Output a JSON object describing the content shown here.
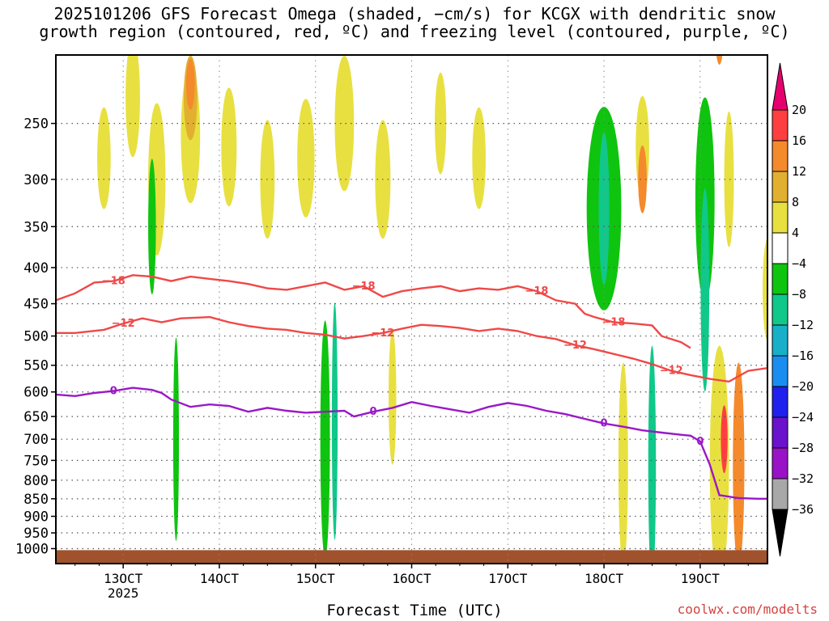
{
  "chart_data": {
    "type": "heatmap",
    "title_line1": "2025101206 GFS Forecast Omega (shaded, −cm/s) for KCGX with dendritic snow",
    "title_line2": "growth region (contoured, red, ºC) and freezing level (contoured, purple, ºC)",
    "xlabel": "Forecast Time (UTC)",
    "credit": "coolwx.com/modelts",
    "x_range_hours": [
      -7,
      67
    ],
    "x_ticks": [
      {
        "label": "13OCT",
        "hour": 0,
        "sub": "2025"
      },
      {
        "label": "14OCT",
        "hour": 10
      },
      {
        "label": "15OCT",
        "hour": 20
      },
      {
        "label": "16OCT",
        "hour": 30
      },
      {
        "label": "17OCT",
        "hour": 40
      },
      {
        "label": "18OCT",
        "hour": 50
      },
      {
        "label": "19OCT",
        "hour": 60
      }
    ],
    "y_ticks": [
      250,
      300,
      350,
      400,
      450,
      500,
      550,
      600,
      650,
      700,
      750,
      800,
      850,
      900,
      950,
      1000
    ],
    "ylim_hpa": [
      1050,
      200
    ],
    "grid": true,
    "colorbar": {
      "labels": [
        "20",
        "16",
        "12",
        "8",
        "4",
        "−4",
        "−8",
        "−12",
        "−16",
        "−20",
        "−24",
        "−28",
        "−32",
        "−36"
      ],
      "colors": [
        "#e6006e",
        "#ff3f3f",
        "#f48a2c",
        "#e2b030",
        "#e8e040",
        "#ffffff",
        "#0fc40f",
        "#10c88a",
        "#18b0c8",
        "#1a8ef0",
        "#2020ee",
        "#6a12cc",
        "#9a12c8",
        "#a8a8a8",
        "#000000"
      ]
    },
    "contours": [
      {
        "name": "−18",
        "color": "#f04848",
        "points": [
          [
            -7,
            445
          ],
          [
            -5,
            435
          ],
          [
            -3,
            420
          ],
          [
            -1,
            418
          ],
          [
            1,
            410
          ],
          [
            3,
            412
          ],
          [
            5,
            418
          ],
          [
            7,
            412
          ],
          [
            9,
            415
          ],
          [
            11,
            418
          ],
          [
            13,
            422
          ],
          [
            15,
            428
          ],
          [
            17,
            430
          ],
          [
            19,
            425
          ],
          [
            21,
            420
          ],
          [
            23,
            430
          ],
          [
            25,
            425
          ],
          [
            27,
            440
          ],
          [
            29,
            432
          ],
          [
            31,
            428
          ],
          [
            33,
            425
          ],
          [
            35,
            432
          ],
          [
            37,
            428
          ],
          [
            39,
            430
          ],
          [
            41,
            425
          ],
          [
            43,
            432
          ],
          [
            45,
            445
          ],
          [
            47,
            450
          ],
          [
            48,
            465
          ],
          [
            49,
            470
          ],
          [
            51,
            478
          ],
          [
            53,
            480
          ],
          [
            55,
            483
          ],
          [
            56,
            500
          ],
          [
            58,
            510
          ],
          [
            59,
            520
          ]
        ]
      },
      {
        "name": "−12",
        "color": "#f04848",
        "points": [
          [
            -7,
            495
          ],
          [
            -5,
            495
          ],
          [
            -2,
            490
          ],
          [
            0,
            480
          ],
          [
            2,
            472
          ],
          [
            4,
            478
          ],
          [
            6,
            472
          ],
          [
            9,
            470
          ],
          [
            11,
            478
          ],
          [
            13,
            484
          ],
          [
            15,
            488
          ],
          [
            17,
            490
          ],
          [
            19,
            495
          ],
          [
            21,
            498
          ],
          [
            23,
            504
          ],
          [
            25,
            500
          ],
          [
            27,
            495
          ],
          [
            29,
            488
          ],
          [
            31,
            482
          ],
          [
            33,
            484
          ],
          [
            35,
            487
          ],
          [
            37,
            492
          ],
          [
            39,
            488
          ],
          [
            41,
            492
          ],
          [
            43,
            500
          ],
          [
            45,
            505
          ],
          [
            47,
            515
          ],
          [
            49,
            522
          ],
          [
            51,
            530
          ],
          [
            53,
            538
          ],
          [
            55,
            548
          ],
          [
            57,
            560
          ],
          [
            59,
            568
          ],
          [
            61,
            575
          ],
          [
            63,
            580
          ],
          [
            65,
            560
          ],
          [
            67,
            555
          ]
        ]
      },
      {
        "name": "0",
        "color": "#9a18c8",
        "points": [
          [
            -7,
            605
          ],
          [
            -5,
            608
          ],
          [
            -3,
            602
          ],
          [
            -1,
            598
          ],
          [
            1,
            592
          ],
          [
            3,
            596
          ],
          [
            4,
            602
          ],
          [
            5,
            615
          ],
          [
            7,
            630
          ],
          [
            9,
            625
          ],
          [
            11,
            628
          ],
          [
            13,
            640
          ],
          [
            15,
            632
          ],
          [
            17,
            638
          ],
          [
            19,
            642
          ],
          [
            21,
            640
          ],
          [
            23,
            638
          ],
          [
            24,
            650
          ],
          [
            26,
            640
          ],
          [
            28,
            632
          ],
          [
            30,
            620
          ],
          [
            32,
            628
          ],
          [
            34,
            635
          ],
          [
            36,
            642
          ],
          [
            38,
            630
          ],
          [
            40,
            622
          ],
          [
            42,
            628
          ],
          [
            44,
            638
          ],
          [
            46,
            645
          ],
          [
            48,
            655
          ],
          [
            50,
            665
          ],
          [
            52,
            672
          ],
          [
            54,
            680
          ],
          [
            56,
            685
          ],
          [
            58,
            690
          ],
          [
            59,
            692
          ],
          [
            60,
            705
          ],
          [
            61,
            760
          ],
          [
            62,
            840
          ],
          [
            64,
            848
          ],
          [
            66,
            850
          ],
          [
            67,
            850
          ]
        ]
      }
    ],
    "omega_patches": [
      {
        "value": 4,
        "h": -2.0,
        "p": 280,
        "w": 1.4,
        "t": 60
      },
      {
        "value": 4,
        "h": 1.0,
        "p": 230,
        "w": 1.5,
        "t": 70
      },
      {
        "value": 4,
        "h": 3.5,
        "p": 300,
        "w": 1.8,
        "t": 90
      },
      {
        "value": 4,
        "h": 7.0,
        "p": 260,
        "w": 2.0,
        "t": 80
      },
      {
        "value": 8,
        "h": 7.0,
        "p": 230,
        "w": 1.4,
        "t": 50
      },
      {
        "value": 12,
        "h": 7.0,
        "p": 220,
        "w": 0.9,
        "t": 30
      },
      {
        "value": 4,
        "h": 11.0,
        "p": 270,
        "w": 1.6,
        "t": 70
      },
      {
        "value": 4,
        "h": 15.0,
        "p": 300,
        "w": 1.5,
        "t": 70
      },
      {
        "value": 4,
        "h": 19.0,
        "p": 280,
        "w": 1.8,
        "t": 70
      },
      {
        "value": 4,
        "h": 23.0,
        "p": 250,
        "w": 2.0,
        "t": 80
      },
      {
        "value": 4,
        "h": 27.0,
        "p": 300,
        "w": 1.6,
        "t": 70
      },
      {
        "value": 4,
        "h": 33.0,
        "p": 250,
        "w": 1.2,
        "t": 60
      },
      {
        "value": 4,
        "h": 37.0,
        "p": 280,
        "w": 1.4,
        "t": 60
      },
      {
        "value": -8,
        "h": 50.0,
        "p": 330,
        "w": 3.6,
        "t": 120
      },
      {
        "value": -12,
        "h": 50.0,
        "p": 330,
        "w": 1.1,
        "t": 90
      },
      {
        "value": 4,
        "h": 54.0,
        "p": 270,
        "w": 1.4,
        "t": 60
      },
      {
        "value": 12,
        "h": 54.0,
        "p": 300,
        "w": 0.9,
        "t": 40
      },
      {
        "value": -8,
        "h": 60.5,
        "p": 320,
        "w": 2.0,
        "t": 120
      },
      {
        "value": 4,
        "h": 63.0,
        "p": 300,
        "w": 1.0,
        "t": 80
      },
      {
        "value": -12,
        "h": 60.5,
        "p": 430,
        "w": 0.9,
        "t": 120
      },
      {
        "value": 12,
        "h": 62.0,
        "p": 190,
        "w": 0.8,
        "t": 30
      },
      {
        "value": 4,
        "h": 67.0,
        "p": 430,
        "w": 1.0,
        "t": 60
      },
      {
        "value": 4,
        "h": 52.0,
        "p": 760,
        "w": 1.0,
        "t": 120
      },
      {
        "value": -12,
        "h": 55.0,
        "p": 760,
        "w": 0.8,
        "t": 140
      },
      {
        "value": 4,
        "h": 62.0,
        "p": 760,
        "w": 2.0,
        "t": 140
      },
      {
        "value": 12,
        "h": 64.0,
        "p": 760,
        "w": 1.2,
        "t": 120
      },
      {
        "value": 16,
        "h": 62.5,
        "p": 700,
        "w": 0.7,
        "t": 40
      },
      {
        "value": -8,
        "h": 21.0,
        "p": 700,
        "w": 1.0,
        "t": 140
      },
      {
        "value": -12,
        "h": 22.0,
        "p": 660,
        "w": 0.6,
        "t": 140
      },
      {
        "value": 4,
        "h": 28.0,
        "p": 610,
        "w": 0.8,
        "t": 80
      },
      {
        "value": -8,
        "h": 5.5,
        "p": 700,
        "w": 0.6,
        "t": 120
      },
      {
        "value": -8,
        "h": 3.0,
        "p": 350,
        "w": 0.8,
        "t": 80
      }
    ]
  }
}
